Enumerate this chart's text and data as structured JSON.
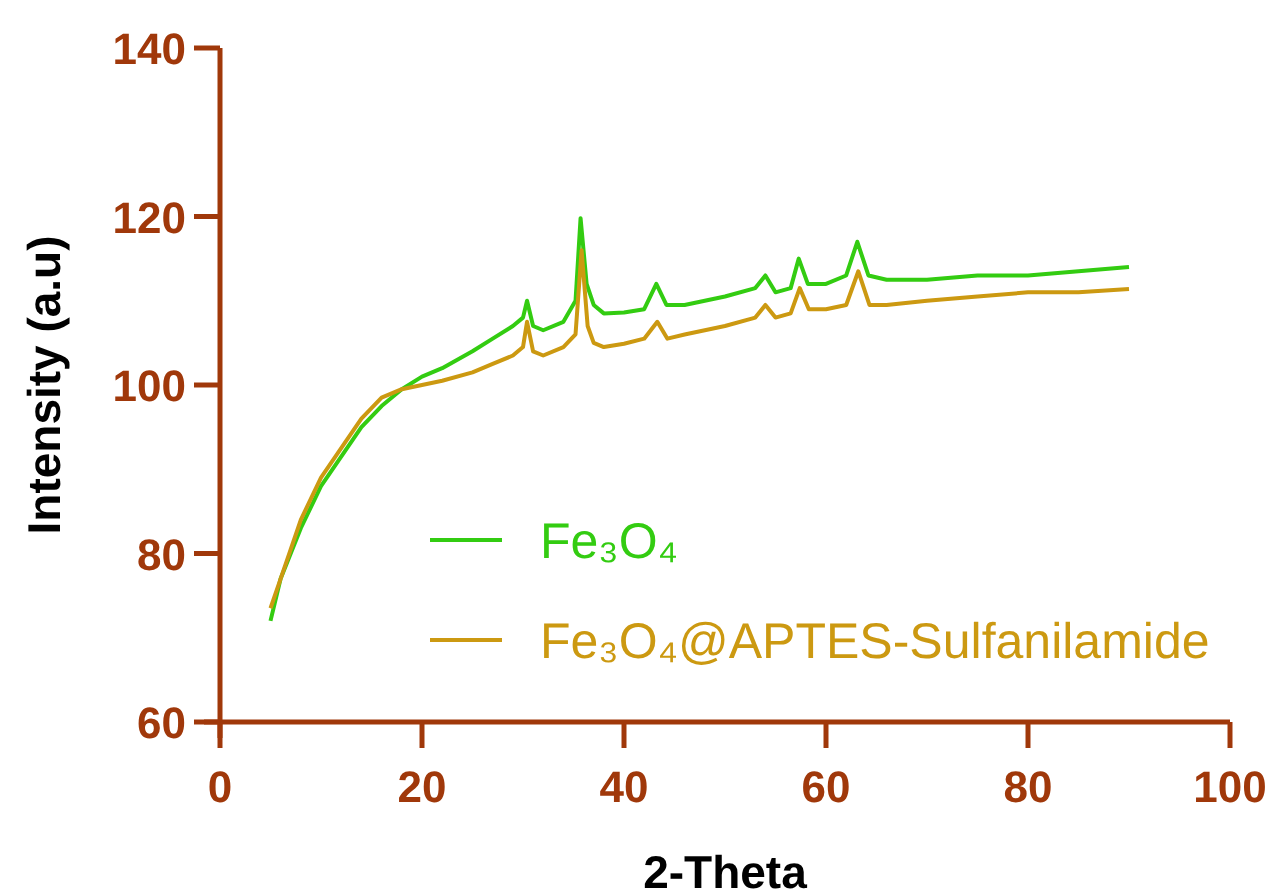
{
  "chart_data": {
    "type": "line",
    "xlabel": "2-Theta",
    "ylabel": "Intensity (a.u)",
    "xlim": [
      0,
      100
    ],
    "ylim": [
      60,
      140
    ],
    "xticks": [
      0,
      20,
      40,
      60,
      80,
      100
    ],
    "yticks": [
      60,
      80,
      100,
      120,
      140
    ],
    "grid": false,
    "legend": "bottom",
    "marker": "none",
    "line_style": "solid",
    "series": [
      {
        "name": "Fe₃O₄",
        "color": "#33cc11",
        "x": [
          5,
          6,
          7,
          8,
          10,
          12,
          14,
          16,
          18,
          20,
          22,
          25,
          27,
          29,
          30,
          30.4,
          31,
          32,
          34,
          35.2,
          35.7,
          36.3,
          37,
          38,
          40,
          42,
          43.2,
          44.2,
          46,
          50,
          53,
          54,
          55,
          56.5,
          57.3,
          58.2,
          60,
          62,
          63.1,
          64.2,
          66,
          70,
          75,
          80,
          85,
          90
        ],
        "values": [
          72,
          77,
          80,
          83,
          88,
          91.5,
          95,
          97.5,
          99.5,
          101,
          102,
          104,
          105.5,
          107,
          108,
          110,
          107,
          106.5,
          107.5,
          110,
          119.8,
          112,
          109.5,
          108.5,
          108.6,
          109,
          112,
          109.5,
          109.5,
          110.5,
          111.5,
          113,
          111,
          111.5,
          115,
          112,
          112,
          113,
          117,
          113,
          112.5,
          112.5,
          113,
          113,
          113.5,
          114
        ]
      },
      {
        "name": "Fe₃O₄@APTES-Sulfanilamide",
        "color": "#cc9911",
        "x": [
          5,
          6,
          7,
          8,
          10,
          12,
          14,
          16,
          18,
          20,
          22,
          25,
          27,
          29,
          30,
          30.4,
          31,
          32,
          34,
          35.2,
          35.8,
          36.4,
          37,
          38,
          40,
          42,
          43.3,
          44.3,
          46,
          50,
          53,
          54,
          55,
          56.5,
          57.4,
          58.3,
          60,
          62,
          63.2,
          64.3,
          66,
          70,
          75,
          80,
          85,
          90
        ],
        "values": [
          73.5,
          77,
          80.5,
          84,
          89,
          92.5,
          96,
          98.5,
          99.5,
          100,
          100.5,
          101.5,
          102.5,
          103.5,
          104.5,
          107.5,
          104,
          103.5,
          104.5,
          106,
          116,
          107,
          105,
          104.5,
          104.9,
          105.5,
          107.5,
          105.5,
          106,
          107,
          108,
          109.5,
          108,
          108.5,
          111.5,
          109,
          109,
          109.5,
          113.5,
          109.5,
          109.5,
          110,
          110.5,
          111,
          111,
          111.4
        ]
      }
    ]
  }
}
